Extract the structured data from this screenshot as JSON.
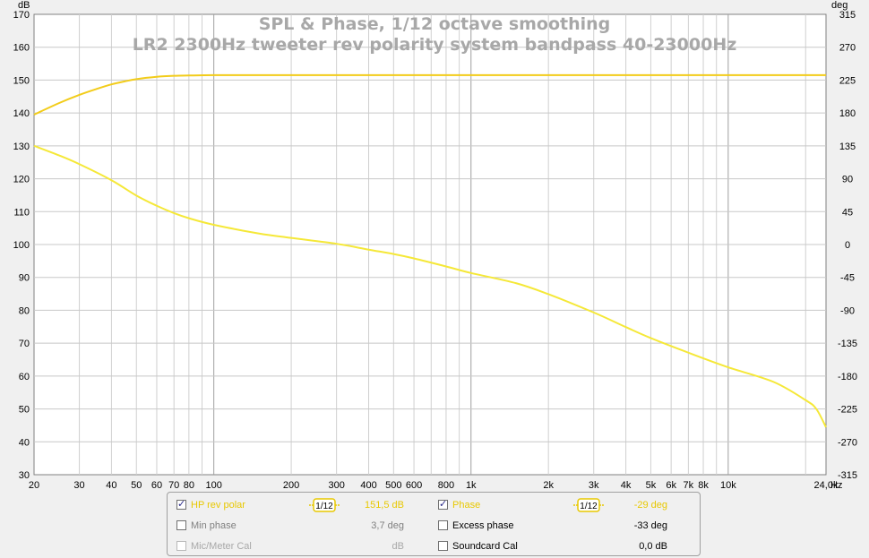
{
  "chart_data": {
    "type": "line",
    "title": "SPL & Phase, 1/12 octave smoothing",
    "subtitle": "LR2 2300Hz tweeter rev polarity system bandpass 40-23000Hz",
    "y_unit_left": "dB",
    "y_unit_right": "deg",
    "x_unit": "Hz",
    "x_scale": "log",
    "xlim": [
      20,
      24000
    ],
    "ylim_left": [
      30,
      170
    ],
    "ylim_right": [
      -315,
      315
    ],
    "x_ticks": [
      {
        "v": 20,
        "label": "20"
      },
      {
        "v": 30,
        "label": "30"
      },
      {
        "v": 40,
        "label": "40"
      },
      {
        "v": 50,
        "label": "50"
      },
      {
        "v": 60,
        "label": "60"
      },
      {
        "v": 70,
        "label": "70"
      },
      {
        "v": 80,
        "label": "80"
      },
      {
        "v": 100,
        "label": "100"
      },
      {
        "v": 200,
        "label": "200"
      },
      {
        "v": 300,
        "label": "300"
      },
      {
        "v": 400,
        "label": "400"
      },
      {
        "v": 500,
        "label": "500"
      },
      {
        "v": 600,
        "label": "600"
      },
      {
        "v": 800,
        "label": "800"
      },
      {
        "v": 1000,
        "label": "1k"
      },
      {
        "v": 2000,
        "label": "2k"
      },
      {
        "v": 3000,
        "label": "3k"
      },
      {
        "v": 4000,
        "label": "4k"
      },
      {
        "v": 5000,
        "label": "5k"
      },
      {
        "v": 6000,
        "label": "6k"
      },
      {
        "v": 7000,
        "label": "7k"
      },
      {
        "v": 8000,
        "label": "8k"
      },
      {
        "v": 10000,
        "label": "10k"
      },
      {
        "v": 24000,
        "label": "24,0k"
      }
    ],
    "y_ticks_left": [
      "170",
      "160",
      "150",
      "140",
      "130",
      "120",
      "110",
      "100",
      "90",
      "80",
      "70",
      "60",
      "50",
      "40",
      "30"
    ],
    "y_ticks_right": [
      "315",
      "270",
      "225",
      "180",
      "135",
      "90",
      "45",
      "0",
      "-45",
      "-90",
      "-135",
      "-180",
      "-225",
      "-270",
      "-315"
    ],
    "grid": true,
    "series": [
      {
        "name": "HP rev polar",
        "axis": "left",
        "color": "#f2cc1a",
        "x": [
          20,
          25,
          30,
          35,
          40,
          45,
          50,
          60,
          70,
          80,
          100,
          150,
          200,
          500,
          1000,
          5000,
          24000
        ],
        "y": [
          139.5,
          143.0,
          145.5,
          147.3,
          148.7,
          149.6,
          150.3,
          151.0,
          151.3,
          151.4,
          151.5,
          151.5,
          151.5,
          151.5,
          151.5,
          151.5,
          151.5
        ]
      },
      {
        "name": "Phase",
        "axis": "right",
        "color": "#f5e838",
        "x": [
          20,
          25,
          30,
          40,
          50,
          60,
          70,
          80,
          100,
          150,
          200,
          300,
          400,
          500,
          600,
          800,
          1000,
          1500,
          2000,
          3000,
          4000,
          5000,
          7000,
          10000,
          15000,
          20000,
          22000,
          24000
        ],
        "y": [
          135,
          122,
          110,
          88,
          67,
          53,
          43,
          36,
          27,
          15,
          9,
          1,
          -7,
          -13,
          -19,
          -30,
          -39,
          -53,
          -68,
          -93,
          -113,
          -128,
          -148,
          -168,
          -188,
          -213,
          -225,
          -250
        ]
      }
    ]
  },
  "legend": {
    "rows": [
      {
        "left": {
          "label": "HP rev polar",
          "checked": true,
          "smoothing": "1/12",
          "value": "151,5 dB"
        },
        "right": {
          "label": "Phase",
          "checked": true,
          "smoothing": "1/12",
          "value": "-29 deg"
        }
      },
      {
        "left": {
          "label": "Min phase",
          "checked": false,
          "value": "3,7 deg"
        },
        "right": {
          "label": "Excess phase",
          "checked": false,
          "value": "-33 deg"
        }
      },
      {
        "left": {
          "label": "Mic/Meter Cal",
          "checked": false,
          "value": "dB"
        },
        "right": {
          "label": "Soundcard Cal",
          "checked": false,
          "value": "0,0 dB"
        }
      }
    ]
  }
}
